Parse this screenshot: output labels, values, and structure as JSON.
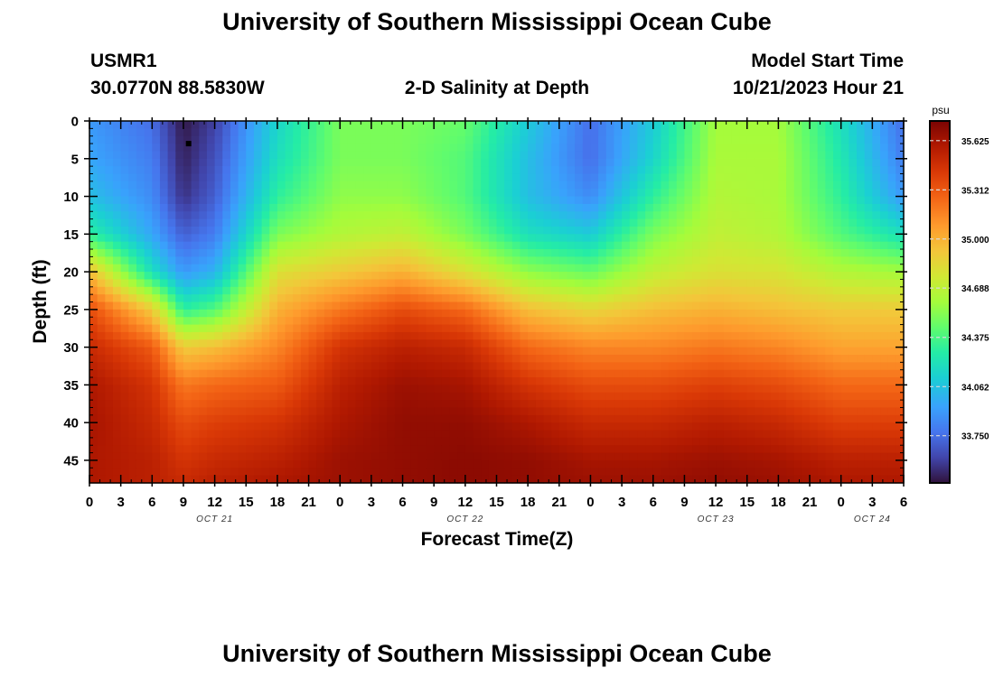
{
  "header": {
    "title": "University of Southern Mississippi Ocean Cube",
    "station_id": "USMR1",
    "coords": "30.0770N  88.5830W",
    "subtitle": "2-D Salinity at Depth",
    "model_start_label": "Model Start Time",
    "model_start_value": "10/21/2023 Hour 21"
  },
  "footer": {
    "title": "University of Southern Mississippi Ocean Cube"
  },
  "chart_data": {
    "type": "heatmap",
    "title": "2-D Salinity at Depth",
    "xlabel": "Forecast Time(Z)",
    "ylabel": "Depth (ft)",
    "x_tick_labels": [
      "0",
      "3",
      "6",
      "9",
      "12",
      "15",
      "18",
      "21",
      "0",
      "3",
      "6",
      "9",
      "12",
      "15",
      "18",
      "21",
      "0",
      "3",
      "6",
      "9",
      "12",
      "15",
      "18",
      "21",
      "0",
      "3",
      "6"
    ],
    "x_hours_range": [
      0,
      78
    ],
    "date_labels": [
      {
        "label": "OCT 21",
        "hour": 12
      },
      {
        "label": "OCT 22",
        "hour": 36
      },
      {
        "label": "OCT 23",
        "hour": 60
      },
      {
        "label": "OCT 24",
        "hour": 75
      }
    ],
    "y_ticks": [
      0,
      5,
      10,
      15,
      20,
      25,
      30,
      35,
      40,
      45
    ],
    "ylim": [
      0,
      48
    ],
    "y_inverted": true,
    "colorbar": {
      "unit": "psu",
      "ticks": [
        "35.625",
        "35.312",
        "35.000",
        "34.688",
        "34.375",
        "34.062",
        "33.750"
      ],
      "range": [
        33.45,
        35.75
      ]
    },
    "marker": {
      "hour": 9.5,
      "depth": 3
    },
    "salinity_profiles": {
      "depths": [
        0,
        5,
        10,
        15,
        20,
        25,
        30,
        35,
        40,
        45,
        48
      ],
      "columns": [
        {
          "hour": 0,
          "values": [
            33.9,
            33.95,
            34.05,
            34.3,
            34.95,
            35.35,
            35.5,
            35.6,
            35.62,
            35.6,
            35.6
          ]
        },
        {
          "hour": 6,
          "values": [
            33.75,
            33.8,
            33.85,
            33.95,
            34.2,
            34.9,
            35.3,
            35.45,
            35.5,
            35.55,
            35.55
          ]
        },
        {
          "hour": 9,
          "values": [
            33.47,
            33.5,
            33.55,
            33.7,
            33.9,
            34.3,
            34.9,
            35.2,
            35.35,
            35.45,
            35.5
          ]
        },
        {
          "hour": 12,
          "values": [
            33.6,
            33.65,
            33.7,
            33.8,
            34.0,
            34.4,
            34.95,
            35.25,
            35.4,
            35.5,
            35.55
          ]
        },
        {
          "hour": 18,
          "values": [
            34.15,
            34.2,
            34.3,
            34.5,
            34.8,
            35.0,
            35.15,
            35.3,
            35.45,
            35.55,
            35.6
          ]
        },
        {
          "hour": 24,
          "values": [
            34.5,
            34.5,
            34.55,
            34.65,
            34.9,
            35.2,
            35.45,
            35.55,
            35.6,
            35.65,
            35.65
          ]
        },
        {
          "hour": 30,
          "values": [
            34.5,
            34.5,
            34.55,
            34.7,
            35.0,
            35.35,
            35.55,
            35.65,
            35.68,
            35.68,
            35.68
          ]
        },
        {
          "hour": 36,
          "values": [
            34.45,
            34.4,
            34.4,
            34.5,
            34.8,
            35.25,
            35.5,
            35.62,
            35.68,
            35.7,
            35.7
          ]
        },
        {
          "hour": 42,
          "values": [
            34.1,
            34.05,
            34.05,
            34.2,
            34.55,
            34.95,
            35.25,
            35.45,
            35.6,
            35.68,
            35.68
          ]
        },
        {
          "hour": 48,
          "values": [
            33.75,
            33.75,
            33.85,
            34.1,
            34.45,
            34.85,
            35.15,
            35.35,
            35.5,
            35.62,
            35.65
          ]
        },
        {
          "hour": 54,
          "values": [
            34.1,
            34.15,
            34.3,
            34.5,
            34.7,
            34.95,
            35.15,
            35.35,
            35.5,
            35.62,
            35.65
          ]
        },
        {
          "hour": 60,
          "values": [
            34.6,
            34.62,
            34.65,
            34.7,
            34.8,
            35.0,
            35.2,
            35.4,
            35.55,
            35.65,
            35.68
          ]
        },
        {
          "hour": 66,
          "values": [
            34.6,
            34.62,
            34.62,
            34.65,
            34.78,
            34.95,
            35.15,
            35.35,
            35.5,
            35.62,
            35.65
          ]
        },
        {
          "hour": 72,
          "values": [
            34.2,
            34.25,
            34.3,
            34.4,
            34.65,
            34.9,
            35.05,
            35.25,
            35.4,
            35.55,
            35.6
          ]
        },
        {
          "hour": 78,
          "values": [
            33.75,
            33.8,
            33.9,
            34.2,
            34.6,
            34.9,
            35.05,
            35.25,
            35.4,
            35.55,
            35.6
          ]
        }
      ]
    }
  }
}
